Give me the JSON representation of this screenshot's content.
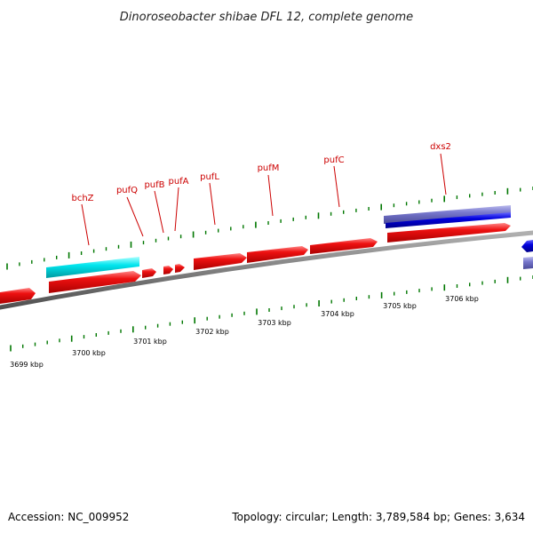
{
  "title": "Dinoroseobacter shibae DFL 12, complete genome",
  "footer": {
    "accession": "Accession: NC_009952",
    "stats": "Topology: circular; Length: 3,789,584 bp; Genes: 3,634"
  },
  "colors": {
    "forward_gene": "#ee1111",
    "rna_gene": "#00e5ee",
    "reverse_gene": "#0000dd",
    "reverse_gene_light": "#7777cc",
    "backbone": "#808080",
    "tick": "#007700",
    "label": "#cc0000"
  },
  "scale": {
    "labels": [
      "3699 kbp",
      "3700 kbp",
      "3701 kbp",
      "3702 kbp",
      "3703 kbp",
      "3704 kbp",
      "3705 kbp",
      "3706 kbp"
    ]
  },
  "genes": {
    "labels": [
      "bchZ",
      "pufQ",
      "pufB",
      "pufA",
      "pufL",
      "pufM",
      "pufC",
      "dxs2"
    ]
  }
}
